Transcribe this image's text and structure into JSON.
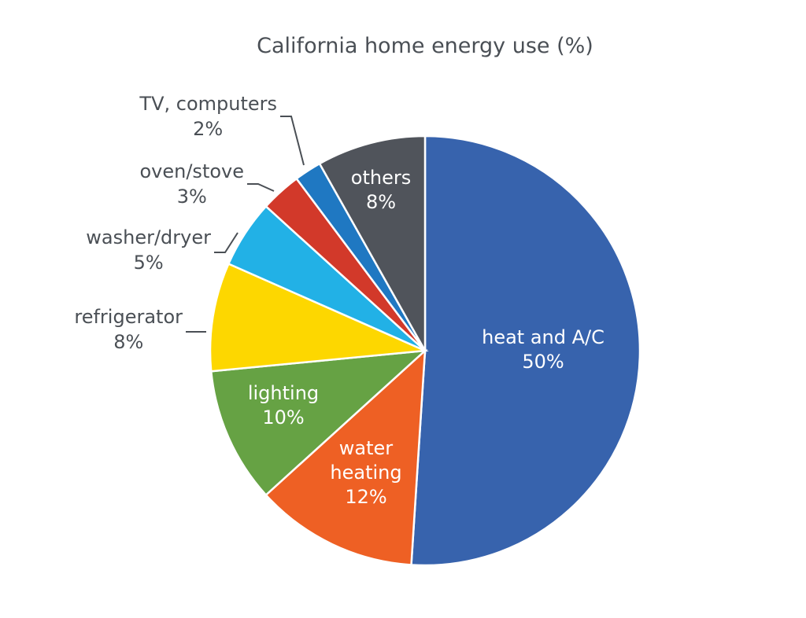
{
  "chart_data": {
    "type": "pie",
    "title": "California home energy use (%)",
    "start_angle_deg": 0,
    "direction": "clockwise",
    "slices": [
      {
        "label_lines": [
          "heat and A/C"
        ],
        "value": 50,
        "value_label": "50%",
        "color": "#3763ad",
        "label_position": "inside"
      },
      {
        "label_lines": [
          "water",
          "heating"
        ],
        "value": 12,
        "value_label": "12%",
        "color": "#ee6024",
        "label_position": "inside"
      },
      {
        "label_lines": [
          "lighting"
        ],
        "value": 10,
        "value_label": "10%",
        "color": "#66a244",
        "label_position": "inside"
      },
      {
        "label_lines": [
          "refrigerator"
        ],
        "value": 8,
        "value_label": "8%",
        "color": "#fdd700",
        "label_position": "outside"
      },
      {
        "label_lines": [
          "washer/dryer"
        ],
        "value": 5,
        "value_label": "5%",
        "color": "#22b1e6",
        "label_position": "outside"
      },
      {
        "label_lines": [
          "oven/stove"
        ],
        "value": 3,
        "value_label": "3%",
        "color": "#d2392a",
        "label_position": "outside"
      },
      {
        "label_lines": [
          "TV, computers"
        ],
        "value": 2,
        "value_label": "2%",
        "color": "#1f78c2",
        "label_position": "outside"
      },
      {
        "label_lines": [
          "others"
        ],
        "value": 8,
        "value_label": "8%",
        "color": "#50545b",
        "label_position": "inside"
      }
    ]
  }
}
